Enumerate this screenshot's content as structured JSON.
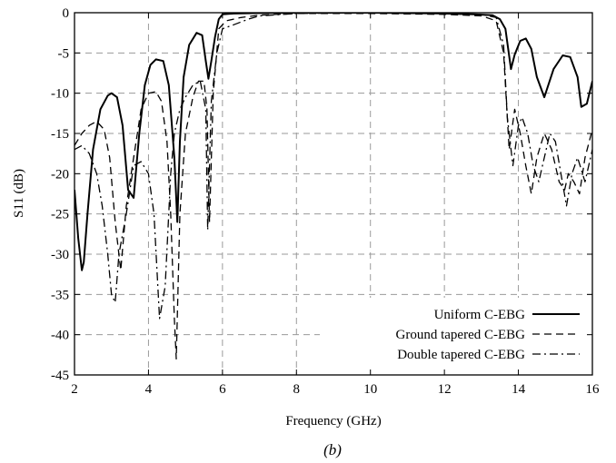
{
  "chart_data": {
    "type": "line",
    "title": "",
    "caption": "(b)",
    "xlabel": "Frequency (GHz)",
    "ylabel": "S11 (dB)",
    "xlim": [
      2,
      16
    ],
    "ylim": [
      -45,
      0
    ],
    "xticks": [
      2,
      4,
      6,
      8,
      10,
      12,
      14,
      16
    ],
    "yticks": [
      0,
      -5,
      -10,
      -15,
      -20,
      -25,
      -30,
      -35,
      -40,
      -45
    ],
    "grid": true,
    "legend_position": "bottom-right",
    "series": [
      {
        "name": "Uniform C-EBG",
        "style": "solid",
        "color": "#000000",
        "x": [
          2.0,
          2.1,
          2.2,
          2.25,
          2.35,
          2.5,
          2.7,
          2.9,
          3.0,
          3.15,
          3.3,
          3.45,
          3.6,
          3.75,
          3.9,
          4.05,
          4.2,
          4.4,
          4.55,
          4.7,
          4.78,
          4.85,
          4.95,
          5.1,
          5.3,
          5.45,
          5.55,
          5.62,
          5.7,
          5.8,
          5.9,
          6.0,
          6.3,
          7.0,
          8.0,
          10.0,
          12.0,
          12.8,
          13.3,
          13.5,
          13.65,
          13.8,
          13.9,
          14.05,
          14.2,
          14.35,
          14.5,
          14.7,
          14.95,
          15.2,
          15.4,
          15.6,
          15.7,
          15.85,
          16.0
        ],
        "y": [
          -22,
          -28,
          -32,
          -31,
          -25,
          -17,
          -12,
          -10.3,
          -10,
          -10.5,
          -14,
          -22,
          -23,
          -15,
          -9,
          -6.5,
          -5.8,
          -6,
          -9,
          -18,
          -26,
          -16,
          -8,
          -4,
          -2.5,
          -2.8,
          -6,
          -8.2,
          -6,
          -3,
          -0.8,
          -0.2,
          -0.1,
          -0.05,
          0,
          0,
          -0.1,
          -0.2,
          -0.3,
          -0.8,
          -2,
          -7,
          -5.2,
          -3.5,
          -3.2,
          -4.5,
          -8,
          -10.5,
          -7,
          -5.3,
          -5.5,
          -8,
          -11.7,
          -11.3,
          -8.5
        ]
      },
      {
        "name": "Ground tapered C-EBG",
        "style": "dashed",
        "color": "#000000",
        "x": [
          2.0,
          2.2,
          2.4,
          2.6,
          2.8,
          2.95,
          3.1,
          3.25,
          3.4,
          3.6,
          3.8,
          4.0,
          4.2,
          4.35,
          4.5,
          4.6,
          4.7,
          4.75,
          4.85,
          5.0,
          5.2,
          5.35,
          5.5,
          5.58,
          5.65,
          5.75,
          5.9,
          6.1,
          6.5,
          7.0,
          8.0,
          10.0,
          12.0,
          13.0,
          13.4,
          13.6,
          13.75,
          13.9,
          14.05,
          14.2,
          14.35,
          14.5,
          14.7,
          14.9,
          15.1,
          15.25,
          15.35,
          15.5,
          15.65,
          15.8,
          16.0
        ],
        "y": [
          -16.5,
          -15,
          -14,
          -13.5,
          -14.5,
          -18,
          -26,
          -32,
          -24,
          -18,
          -12,
          -10,
          -9.8,
          -11,
          -16,
          -25,
          -38,
          -43,
          -25,
          -15,
          -10.5,
          -8.5,
          -8.5,
          -12,
          -26,
          -10,
          -2,
          -1,
          -0.6,
          -0.3,
          -0.1,
          -0.1,
          -0.2,
          -0.4,
          -1,
          -5,
          -17,
          -12,
          -15,
          -19,
          -22.5,
          -18,
          -15,
          -17,
          -21,
          -22,
          -20,
          -21,
          -22.5,
          -18,
          -14.5
        ]
      },
      {
        "name": "Double tapered C-EBG",
        "style": "dashdot",
        "color": "#000000",
        "x": [
          2.0,
          2.2,
          2.4,
          2.6,
          2.75,
          2.9,
          3.0,
          3.1,
          3.2,
          3.4,
          3.6,
          3.8,
          4.0,
          4.15,
          4.3,
          4.45,
          4.6,
          4.7,
          4.85,
          5.0,
          5.2,
          5.4,
          5.55,
          5.6,
          5.7,
          5.85,
          6.0,
          6.3,
          6.7,
          7.0,
          8.0,
          10.0,
          12.0,
          13.0,
          13.4,
          13.6,
          13.7,
          13.85,
          14.0,
          14.1,
          14.25,
          14.4,
          14.55,
          14.7,
          14.85,
          15.0,
          15.15,
          15.3,
          15.45,
          15.6,
          15.8,
          16.0
        ],
        "y": [
          -17,
          -16.5,
          -17.5,
          -20,
          -24,
          -30,
          -35,
          -36,
          -30,
          -25,
          -19,
          -18.5,
          -20,
          -25,
          -38,
          -34,
          -20,
          -15,
          -12,
          -10.5,
          -9,
          -8.5,
          -12,
          -27,
          -11,
          -5,
          -2,
          -1.5,
          -0.8,
          -0.4,
          -0.1,
          0,
          -0.1,
          -0.2,
          -0.6,
          -4,
          -13,
          -19,
          -14,
          -13,
          -15,
          -19,
          -21,
          -18,
          -15,
          -16,
          -20,
          -24,
          -20,
          -18,
          -21,
          -17
        ]
      }
    ]
  }
}
